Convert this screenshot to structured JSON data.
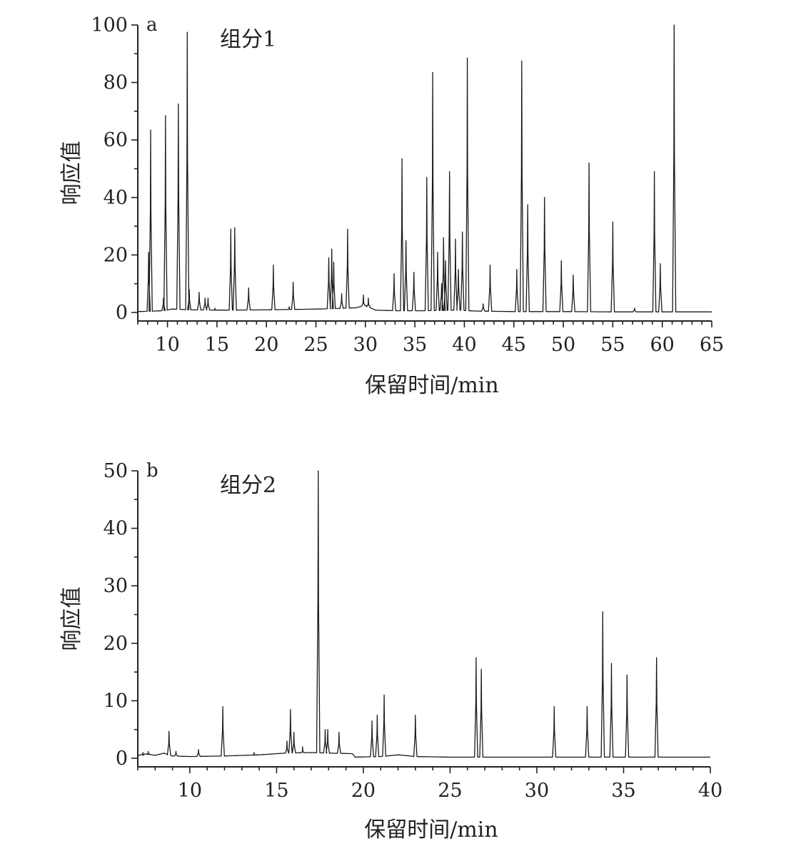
{
  "chart_data": [
    {
      "type": "line",
      "panel_label": "a",
      "title": "组分1",
      "xlabel": "保留时间/min",
      "ylabel": "响应值",
      "xlim": [
        7,
        65
      ],
      "ylim": [
        0,
        100
      ],
      "x_ticks": [
        10,
        15,
        20,
        25,
        30,
        35,
        40,
        45,
        50,
        55,
        60,
        65
      ],
      "y_ticks": [
        0,
        20,
        40,
        60,
        80,
        100
      ],
      "grid": false,
      "baseline": [
        [
          7.0,
          0.3
        ],
        [
          8.0,
          0.4
        ],
        [
          9.5,
          0.6
        ],
        [
          10.5,
          1.2
        ],
        [
          12.5,
          0.9
        ],
        [
          16.0,
          0.8
        ],
        [
          20.0,
          0.9
        ],
        [
          25.5,
          1.2
        ],
        [
          29.0,
          1.6
        ],
        [
          30.0,
          2.5
        ],
        [
          31.0,
          0.8
        ],
        [
          33.0,
          0.6
        ],
        [
          36.0,
          0.6
        ],
        [
          39.5,
          0.8
        ],
        [
          41.0,
          0.5
        ],
        [
          45.0,
          0.3
        ],
        [
          50.0,
          0.3
        ],
        [
          55.0,
          0.2
        ],
        [
          60.0,
          0.2
        ],
        [
          65.0,
          0.2
        ]
      ],
      "peaks": [
        {
          "x": 8.1,
          "y": 21
        },
        {
          "x": 8.3,
          "y": 63.5
        },
        {
          "x": 9.6,
          "y": 5
        },
        {
          "x": 9.8,
          "y": 68.5
        },
        {
          "x": 11.1,
          "y": 72.5
        },
        {
          "x": 12.0,
          "y": 97.5
        },
        {
          "x": 12.2,
          "y": 8
        },
        {
          "x": 13.2,
          "y": 7
        },
        {
          "x": 13.8,
          "y": 5
        },
        {
          "x": 14.1,
          "y": 5
        },
        {
          "x": 14.8,
          "y": 1.5
        },
        {
          "x": 16.4,
          "y": 29
        },
        {
          "x": 16.8,
          "y": 29.5
        },
        {
          "x": 18.2,
          "y": 8.5
        },
        {
          "x": 20.7,
          "y": 16.5
        },
        {
          "x": 22.3,
          "y": 2
        },
        {
          "x": 22.7,
          "y": 10.5
        },
        {
          "x": 26.3,
          "y": 19
        },
        {
          "x": 26.6,
          "y": 22
        },
        {
          "x": 26.8,
          "y": 17.5
        },
        {
          "x": 27.6,
          "y": 6.5
        },
        {
          "x": 28.2,
          "y": 29
        },
        {
          "x": 29.8,
          "y": 6
        },
        {
          "x": 30.3,
          "y": 5
        },
        {
          "x": 32.9,
          "y": 13.5
        },
        {
          "x": 33.7,
          "y": 53.5
        },
        {
          "x": 34.1,
          "y": 25
        },
        {
          "x": 34.9,
          "y": 14
        },
        {
          "x": 36.2,
          "y": 47
        },
        {
          "x": 36.8,
          "y": 83.5
        },
        {
          "x": 37.3,
          "y": 21
        },
        {
          "x": 37.7,
          "y": 10
        },
        {
          "x": 37.9,
          "y": 26
        },
        {
          "x": 38.1,
          "y": 18
        },
        {
          "x": 38.5,
          "y": 49
        },
        {
          "x": 39.1,
          "y": 25.5
        },
        {
          "x": 39.4,
          "y": 15
        },
        {
          "x": 39.8,
          "y": 28
        },
        {
          "x": 40.3,
          "y": 88.5
        },
        {
          "x": 41.9,
          "y": 3
        },
        {
          "x": 42.6,
          "y": 16.5
        },
        {
          "x": 45.3,
          "y": 15
        },
        {
          "x": 45.8,
          "y": 87.5
        },
        {
          "x": 46.4,
          "y": 37.5
        },
        {
          "x": 48.1,
          "y": 40
        },
        {
          "x": 49.8,
          "y": 18
        },
        {
          "x": 51.0,
          "y": 13
        },
        {
          "x": 52.6,
          "y": 52
        },
        {
          "x": 55.0,
          "y": 31.5
        },
        {
          "x": 57.2,
          "y": 1.5
        },
        {
          "x": 59.2,
          "y": 49
        },
        {
          "x": 59.8,
          "y": 17
        },
        {
          "x": 61.2,
          "y": 100
        }
      ]
    },
    {
      "type": "line",
      "panel_label": "b",
      "title": "组分2",
      "xlabel": "保留时间/min",
      "ylabel": "响应值",
      "xlim": [
        7,
        40
      ],
      "ylim": [
        0,
        50
      ],
      "x_ticks": [
        10,
        15,
        20,
        25,
        30,
        35,
        40
      ],
      "y_ticks": [
        0,
        10,
        20,
        30,
        40,
        50
      ],
      "grid": false,
      "baseline": [
        [
          7.0,
          0.5
        ],
        [
          7.5,
          0.8
        ],
        [
          8.0,
          0.5
        ],
        [
          8.5,
          0.9
        ],
        [
          9.0,
          0.4
        ],
        [
          10.0,
          0.3
        ],
        [
          12.0,
          0.4
        ],
        [
          14.0,
          0.6
        ],
        [
          15.5,
          0.9
        ],
        [
          17.0,
          1.0
        ],
        [
          18.0,
          0.9
        ],
        [
          19.4,
          0.8
        ],
        [
          19.5,
          0.2
        ],
        [
          21.0,
          0.3
        ],
        [
          22.0,
          0.6
        ],
        [
          23.0,
          0.3
        ],
        [
          25.0,
          0.2
        ],
        [
          30.0,
          0.2
        ],
        [
          35.0,
          0.2
        ],
        [
          40.0,
          0.2
        ]
      ],
      "peaks": [
        {
          "x": 7.3,
          "y": 1
        },
        {
          "x": 7.6,
          "y": 1.2
        },
        {
          "x": 8.8,
          "y": 4.7
        },
        {
          "x": 9.2,
          "y": 1.2
        },
        {
          "x": 10.5,
          "y": 1.5
        },
        {
          "x": 11.9,
          "y": 9
        },
        {
          "x": 13.7,
          "y": 1
        },
        {
          "x": 15.6,
          "y": 3
        },
        {
          "x": 15.8,
          "y": 8.5
        },
        {
          "x": 16.0,
          "y": 4.5
        },
        {
          "x": 16.5,
          "y": 2
        },
        {
          "x": 17.4,
          "y": 50
        },
        {
          "x": 17.8,
          "y": 5
        },
        {
          "x": 17.95,
          "y": 5
        },
        {
          "x": 18.6,
          "y": 4.5
        },
        {
          "x": 20.5,
          "y": 6.5
        },
        {
          "x": 20.8,
          "y": 7.5
        },
        {
          "x": 21.2,
          "y": 11
        },
        {
          "x": 23.0,
          "y": 7.5
        },
        {
          "x": 26.5,
          "y": 17.5
        },
        {
          "x": 26.8,
          "y": 15.5
        },
        {
          "x": 31.0,
          "y": 9
        },
        {
          "x": 32.9,
          "y": 9
        },
        {
          "x": 33.8,
          "y": 25.5
        },
        {
          "x": 34.3,
          "y": 16.5
        },
        {
          "x": 35.2,
          "y": 14.5
        },
        {
          "x": 36.9,
          "y": 17.5
        }
      ]
    }
  ]
}
